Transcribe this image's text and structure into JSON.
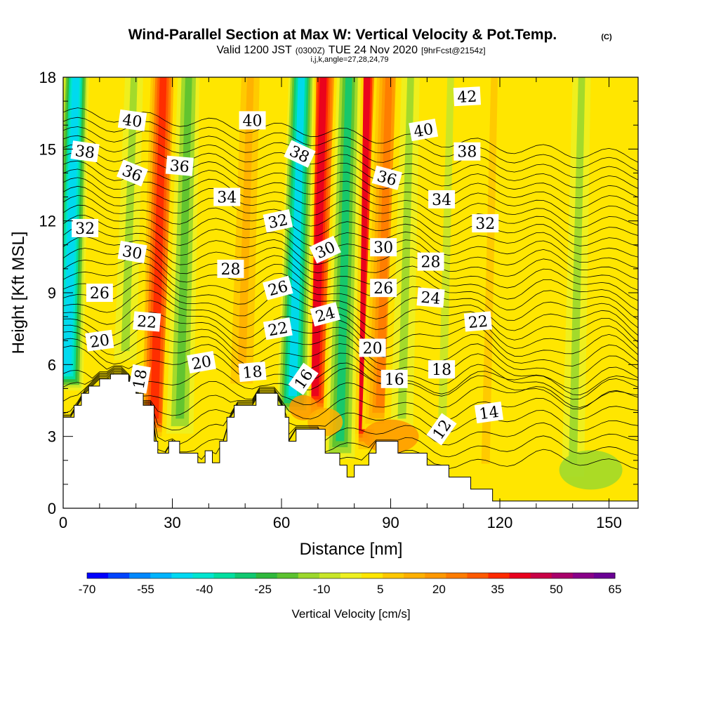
{
  "header": {
    "title": "Wind-Parallel Section at Max W: Vertical Velocity & Pot.Temp.",
    "title_mark": "(C)",
    "valid_prefix": "Valid 1200 JST",
    "valid_utc": "(0300Z)",
    "valid_date": "TUE 24 Nov 2020",
    "forecast": "[9hrFcst@2154z]",
    "indices": "i,j,k,angle=27,28,24,79"
  },
  "chart_data": {
    "type": "heatmap",
    "xlabel": "Distance [nm]",
    "ylabel": "Height [Kft MSL]",
    "xlim": [
      0,
      158
    ],
    "ylim": [
      0,
      18
    ],
    "x_ticks": [
      "0",
      "30",
      "60",
      "90",
      "120",
      "150"
    ],
    "y_ticks": [
      "0",
      "3",
      "6",
      "9",
      "12",
      "15",
      "18"
    ],
    "colorbar": {
      "title": "Vertical Velocity [cm/s]",
      "labels": [
        "-70",
        "-55",
        "-40",
        "-25",
        "-10",
        "5",
        "20",
        "35",
        "50",
        "65"
      ],
      "colors": [
        "#0000ff",
        "#0044ff",
        "#0088ff",
        "#00b4ff",
        "#00d9f2",
        "#00e5d0",
        "#00dfa0",
        "#10c870",
        "#30b83c",
        "#5cc230",
        "#9cd82c",
        "#c8e628",
        "#eef020",
        "#ffe600",
        "#ffc800",
        "#ffb000",
        "#ff9800",
        "#ff7c00",
        "#ff5a00",
        "#ff2a00",
        "#e8001e",
        "#c80046",
        "#a8006a",
        "#880088",
        "#6a0094"
      ]
    },
    "updrafts": [
      {
        "x": 27,
        "peak_cm_s": 35
      },
      {
        "x": 51,
        "peak_cm_s": 15
      },
      {
        "x": 71,
        "peak_cm_s": 45
      },
      {
        "x": 83,
        "peak_cm_s": 40
      },
      {
        "x": 89,
        "peak_cm_s": 25
      },
      {
        "x": 118,
        "peak_cm_s": 10
      }
    ],
    "downdrafts": [
      {
        "x": 3,
        "peak_cm_s": -50
      },
      {
        "x": 19,
        "peak_cm_s": -15
      },
      {
        "x": 34,
        "peak_cm_s": -20
      },
      {
        "x": 65,
        "peak_cm_s": -45
      },
      {
        "x": 78,
        "peak_cm_s": -30
      },
      {
        "x": 95,
        "peak_cm_s": -12
      },
      {
        "x": 106,
        "peak_cm_s": -8
      },
      {
        "x": 142,
        "peak_cm_s": -12
      }
    ],
    "terrain": [
      [
        0,
        3.8
      ],
      [
        3,
        3.8
      ],
      [
        3,
        4.3
      ],
      [
        5,
        4.3
      ],
      [
        5,
        4.8
      ],
      [
        7,
        4.8
      ],
      [
        7,
        5.1
      ],
      [
        10,
        5.1
      ],
      [
        10,
        5.4
      ],
      [
        13,
        5.4
      ],
      [
        13,
        5.6
      ],
      [
        18,
        5.6
      ],
      [
        18,
        5.3
      ],
      [
        20,
        5.3
      ],
      [
        20,
        4.8
      ],
      [
        22,
        4.8
      ],
      [
        22,
        4.3
      ],
      [
        25,
        4.3
      ],
      [
        25,
        2.8
      ],
      [
        26,
        2.8
      ],
      [
        26,
        2.3
      ],
      [
        29,
        2.3
      ],
      [
        29,
        2.8
      ],
      [
        32,
        2.8
      ],
      [
        32,
        2.3
      ],
      [
        37,
        2.3
      ],
      [
        37,
        1.9
      ],
      [
        39,
        1.9
      ],
      [
        39,
        2.4
      ],
      [
        41,
        2.4
      ],
      [
        41,
        1.9
      ],
      [
        43,
        1.9
      ],
      [
        43,
        2.8
      ],
      [
        45,
        2.8
      ],
      [
        45,
        3.8
      ],
      [
        47,
        3.8
      ],
      [
        47,
        4.3
      ],
      [
        53,
        4.3
      ],
      [
        53,
        4.8
      ],
      [
        59,
        4.8
      ],
      [
        59,
        4.3
      ],
      [
        61,
        4.3
      ],
      [
        61,
        3.8
      ],
      [
        62,
        3.8
      ],
      [
        62,
        2.8
      ],
      [
        64,
        2.8
      ],
      [
        64,
        3.3
      ],
      [
        72,
        3.3
      ],
      [
        72,
        2.3
      ],
      [
        76,
        2.3
      ],
      [
        76,
        1.8
      ],
      [
        78,
        1.8
      ],
      [
        78,
        1.3
      ],
      [
        80,
        1.3
      ],
      [
        80,
        1.8
      ],
      [
        84,
        1.8
      ],
      [
        84,
        2.3
      ],
      [
        86,
        2.3
      ],
      [
        86,
        2.8
      ],
      [
        92,
        2.8
      ],
      [
        92,
        2.3
      ],
      [
        100,
        2.3
      ],
      [
        100,
        1.8
      ],
      [
        106,
        1.8
      ],
      [
        106,
        1.3
      ],
      [
        112,
        1.3
      ],
      [
        112,
        0.8
      ],
      [
        118,
        0.8
      ],
      [
        118,
        0.3
      ],
      [
        136,
        0.3
      ],
      [
        136,
        0.3
      ],
      [
        158,
        0.3
      ]
    ],
    "theta_labels": [
      {
        "text": "40",
        "x": 19,
        "y": 16.2,
        "rot": 8
      },
      {
        "text": "40",
        "x": 52,
        "y": 16.2,
        "rot": 0
      },
      {
        "text": "42",
        "x": 111,
        "y": 17.2,
        "rot": -3
      },
      {
        "text": "40",
        "x": 99,
        "y": 15.8,
        "rot": -10
      },
      {
        "text": "38",
        "x": 6,
        "y": 14.9,
        "rot": 8
      },
      {
        "text": "38",
        "x": 65,
        "y": 14.8,
        "rot": 25
      },
      {
        "text": "38",
        "x": 111,
        "y": 14.9,
        "rot": 0
      },
      {
        "text": "36",
        "x": 19,
        "y": 14.0,
        "rot": 22
      },
      {
        "text": "36",
        "x": 32,
        "y": 14.3,
        "rot": 5
      },
      {
        "text": "36",
        "x": 89,
        "y": 13.8,
        "rot": 15
      },
      {
        "text": "34",
        "x": 45,
        "y": 13.0,
        "rot": 0
      },
      {
        "text": "34",
        "x": 104,
        "y": 12.9,
        "rot": 0
      },
      {
        "text": "32",
        "x": 59,
        "y": 12.0,
        "rot": -12
      },
      {
        "text": "32",
        "x": 6,
        "y": 11.7,
        "rot": 0
      },
      {
        "text": "32",
        "x": 116,
        "y": 11.9,
        "rot": 0
      },
      {
        "text": "30",
        "x": 19,
        "y": 10.7,
        "rot": 10
      },
      {
        "text": "30",
        "x": 72,
        "y": 10.8,
        "rot": -25
      },
      {
        "text": "30",
        "x": 88,
        "y": 10.9,
        "rot": 0
      },
      {
        "text": "28",
        "x": 46,
        "y": 10.0,
        "rot": 0
      },
      {
        "text": "28",
        "x": 101,
        "y": 10.3,
        "rot": 0
      },
      {
        "text": "26",
        "x": 10,
        "y": 9.0,
        "rot": 0
      },
      {
        "text": "26",
        "x": 59,
        "y": 9.2,
        "rot": -15
      },
      {
        "text": "26",
        "x": 88,
        "y": 9.2,
        "rot": 0
      },
      {
        "text": "24",
        "x": 72,
        "y": 8.1,
        "rot": -15
      },
      {
        "text": "24",
        "x": 101,
        "y": 8.8,
        "rot": 5
      },
      {
        "text": "22",
        "x": 23,
        "y": 7.8,
        "rot": 5
      },
      {
        "text": "22",
        "x": 59,
        "y": 7.5,
        "rot": -10
      },
      {
        "text": "22",
        "x": 114,
        "y": 7.8,
        "rot": -5
      },
      {
        "text": "20",
        "x": 10,
        "y": 7.0,
        "rot": -8
      },
      {
        "text": "20",
        "x": 38,
        "y": 6.1,
        "rot": -10
      },
      {
        "text": "20",
        "x": 85,
        "y": 6.7,
        "rot": 0
      },
      {
        "text": "18",
        "x": 21,
        "y": 5.4,
        "rot": -80
      },
      {
        "text": "18",
        "x": 52,
        "y": 5.7,
        "rot": -5
      },
      {
        "text": "18",
        "x": 104,
        "y": 5.8,
        "rot": 0
      },
      {
        "text": "16",
        "x": 66,
        "y": 5.4,
        "rot": -55
      },
      {
        "text": "16",
        "x": 91,
        "y": 5.4,
        "rot": 0
      },
      {
        "text": "14",
        "x": 117,
        "y": 4.0,
        "rot": -8
      },
      {
        "text": "12",
        "x": 104,
        "y": 3.3,
        "rot": -55
      }
    ]
  }
}
